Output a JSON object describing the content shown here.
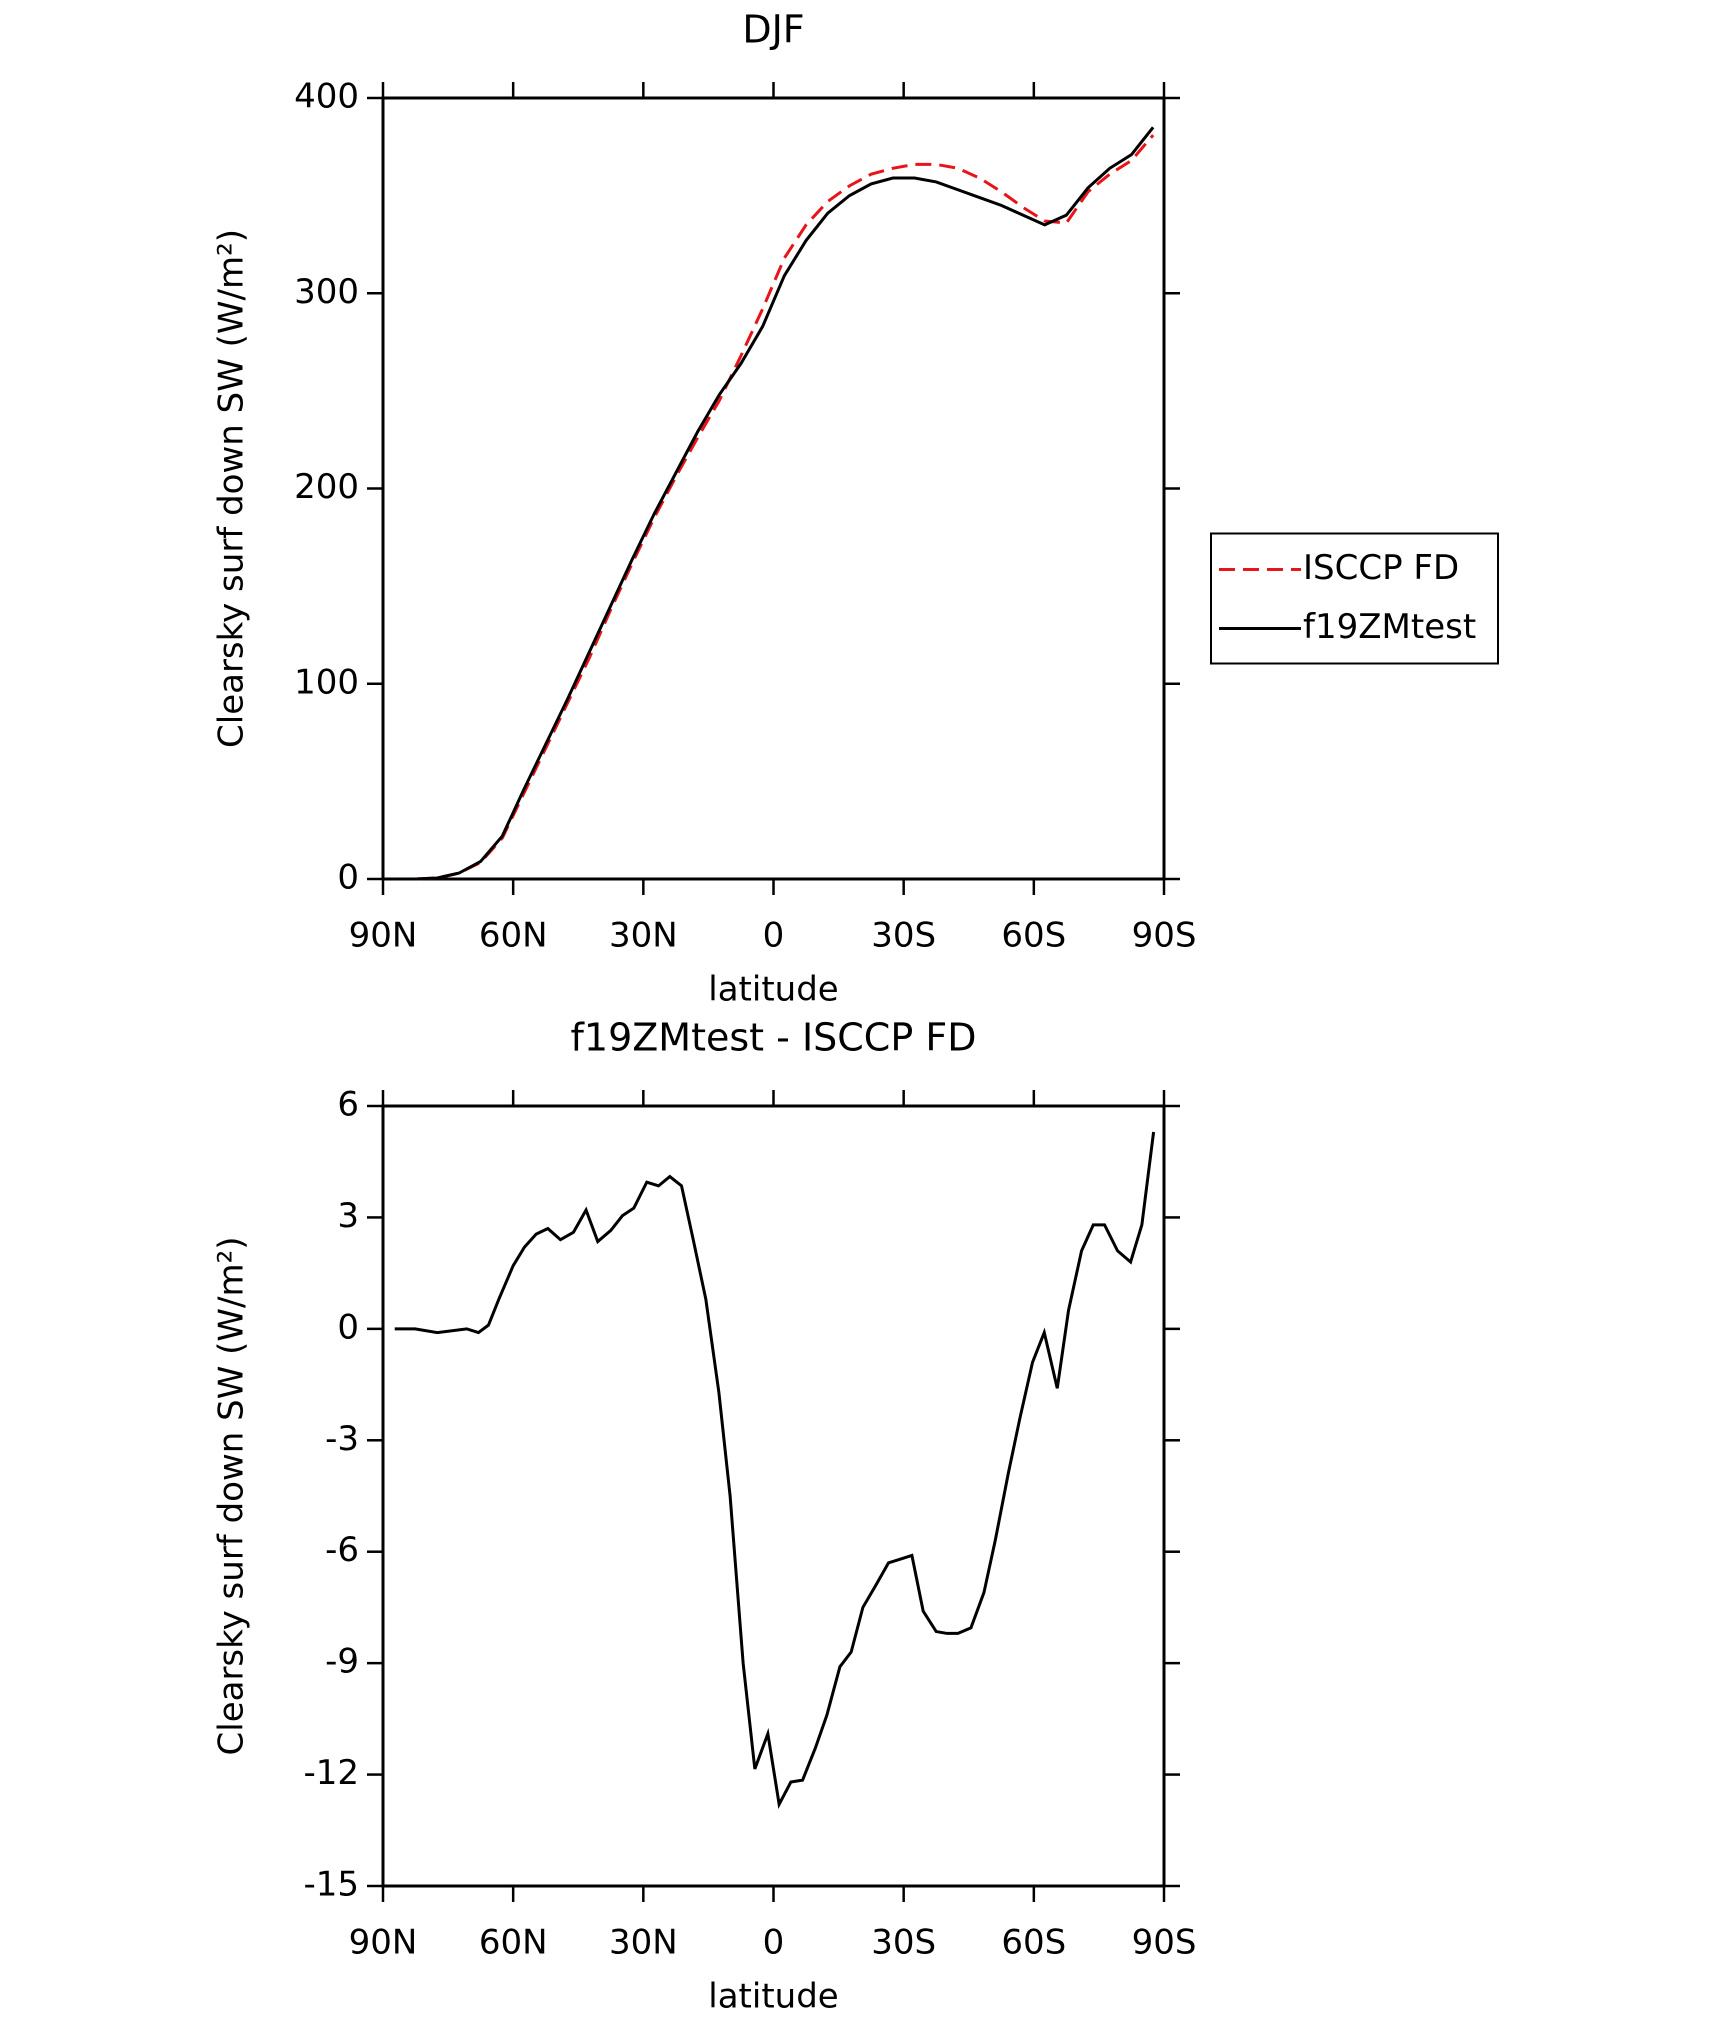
{
  "chart_data": [
    {
      "type": "line",
      "title": "DJF",
      "xlabel": "latitude",
      "ylabel": "Clearsky surf down SW (W/m²)",
      "x": [
        87.5,
        82.5,
        77.5,
        72.5,
        67.5,
        62.5,
        57.5,
        52.5,
        47.5,
        42.5,
        37.5,
        32.5,
        27.5,
        22.5,
        17.5,
        12.5,
        7.5,
        2.5,
        -2.5,
        -7.5,
        -12.5,
        -17.5,
        -22.5,
        -27.5,
        -32.5,
        -37.5,
        -42.5,
        -47.5,
        -52.5,
        -57.5,
        -62.5,
        -67.5,
        -72.5,
        -77.5,
        -82.5,
        -87.5
      ],
      "series": [
        {
          "name": "ISCCP FD",
          "color": "#e8141a",
          "linestyle": "dashed",
          "values": [
            0,
            0,
            0.5,
            3,
            8.5,
            21,
            44,
            67,
            90,
            113,
            138,
            162,
            185,
            206,
            226,
            245,
            268,
            292,
            318,
            335,
            347,
            355,
            361,
            364,
            366,
            366,
            364,
            359,
            352,
            344,
            337,
            336,
            352,
            361,
            368,
            381
          ]
        },
        {
          "name": "f19ZMtest",
          "color": "#000000",
          "linestyle": "solid",
          "values": [
            0,
            0,
            0.5,
            3,
            9,
            22,
            46,
            69,
            92,
            116,
            140,
            164,
            187,
            208,
            229,
            248,
            264,
            283,
            309,
            327,
            341,
            350,
            356,
            359,
            359,
            357,
            353,
            349,
            345,
            340,
            335,
            340,
            354,
            364,
            371,
            385
          ]
        }
      ],
      "xlim": [
        90,
        -90
      ],
      "xticks": [
        {
          "value": 90,
          "label": "90N"
        },
        {
          "value": 60,
          "label": "60N"
        },
        {
          "value": 30,
          "label": "30N"
        },
        0,
        {
          "value": -30,
          "label": "30S"
        },
        {
          "value": -60,
          "label": "60S"
        },
        {
          "value": -90,
          "label": "90S"
        }
      ],
      "ylim": [
        0,
        400
      ],
      "yticks": [
        0,
        100,
        200,
        300,
        400
      ],
      "legend": "right"
    },
    {
      "type": "line",
      "title": "f19ZMtest - ISCCP FD",
      "xlabel": "latitude",
      "ylabel": "Clearsky surf down SW (W/m²)",
      "x": [
        87.3,
        82.6,
        77.5,
        70.7,
        68,
        65.7,
        63.3,
        60,
        57.4,
        54.7,
        52,
        49.1,
        46.1,
        43.2,
        40.5,
        37.5,
        34.8,
        32.2,
        29.2,
        26.5,
        23.9,
        21.2,
        18.5,
        15.6,
        12.6,
        10,
        7,
        4.3,
        1.3,
        -1.3,
        -4,
        -6.7,
        -9.6,
        -12.3,
        -15.3,
        -17.9,
        -20.6,
        -23.6,
        -26.5,
        -29.2,
        -31.9,
        -34.5,
        -37.5,
        -40,
        -42.5,
        -45.5,
        -48.5,
        -51.1,
        -54.1,
        -56.8,
        -59.7,
        -62.4,
        -65.4,
        -68,
        -71,
        -73.7,
        -76.3,
        -79.3,
        -82.3,
        -84.9,
        -87.6
      ],
      "series": [
        {
          "name": "f19ZMtest",
          "color": "#000000",
          "linestyle": "solid",
          "values": [
            0,
            0,
            -0.1,
            0,
            -0.1,
            0.1,
            0.8,
            1.7,
            2.2,
            2.55,
            2.7,
            2.4,
            2.6,
            3.2,
            2.35,
            2.65,
            3.05,
            3.25,
            3.95,
            3.85,
            4.1,
            3.85,
            2.4,
            0.8,
            -1.7,
            -4.5,
            -9,
            -11.85,
            -10.9,
            -12.8,
            -12.2,
            -12.15,
            -11.3,
            -10.4,
            -9.1,
            -8.7,
            -7.5,
            -6.9,
            -6.3,
            -6.2,
            -6.1,
            -7.6,
            -8.15,
            -8.2,
            -8.2,
            -8.05,
            -7.1,
            -5.7,
            -3.9,
            -2.4,
            -0.9,
            -0.1,
            -1.6,
            0.5,
            2.1,
            2.8,
            2.8,
            2.1,
            1.8,
            2.8,
            5.3
          ]
        }
      ],
      "xlim": [
        90,
        -90
      ],
      "xticks": [
        {
          "value": 90,
          "label": "90N"
        },
        {
          "value": 60,
          "label": "60N"
        },
        {
          "value": 30,
          "label": "30N"
        },
        0,
        {
          "value": -30,
          "label": "30S"
        },
        {
          "value": -60,
          "label": "60S"
        },
        {
          "value": -90,
          "label": "90S"
        }
      ],
      "ylim": [
        -15,
        6
      ],
      "yticks": [
        -15,
        -12,
        -9,
        -6,
        -3,
        0,
        3,
        6
      ]
    }
  ]
}
